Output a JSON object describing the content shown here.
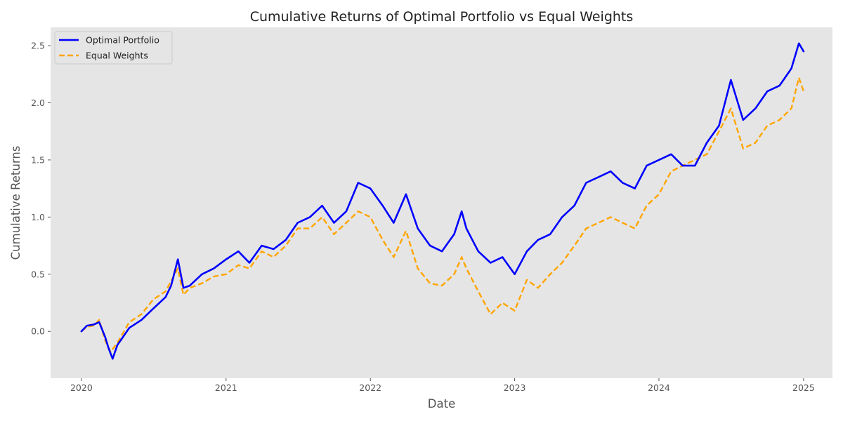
{
  "chart_data": {
    "type": "line",
    "title": "Cumulative Returns of Optimal Portfolio vs Equal Weights",
    "xlabel": "Date",
    "ylabel": "Cumulative Returns",
    "x_ticks": [
      "2020",
      "2021",
      "2022",
      "2023",
      "2024",
      "2025"
    ],
    "y_ticks": [
      "0.0",
      "0.5",
      "1.0",
      "1.5",
      "2.0",
      "2.5"
    ],
    "xlim": [
      "2019-10-15",
      "2025-03-15"
    ],
    "ylim": [
      -0.41,
      2.66
    ],
    "grid": false,
    "legend_position": "top-left",
    "background": "#e5e5e5",
    "series": [
      {
        "name": "Optimal Portfolio",
        "color": "#0000ff",
        "style": "solid",
        "points": [
          [
            "2020-01-01",
            0.0
          ],
          [
            "2020-01-15",
            0.05
          ],
          [
            "2020-02-01",
            0.06
          ],
          [
            "2020-02-15",
            0.08
          ],
          [
            "2020-03-01",
            -0.05
          ],
          [
            "2020-03-10",
            -0.15
          ],
          [
            "2020-03-20",
            -0.24
          ],
          [
            "2020-04-01",
            -0.12
          ],
          [
            "2020-04-15",
            -0.05
          ],
          [
            "2020-05-01",
            0.03
          ],
          [
            "2020-06-01",
            0.1
          ],
          [
            "2020-07-01",
            0.2
          ],
          [
            "2020-08-01",
            0.3
          ],
          [
            "2020-08-15",
            0.4
          ],
          [
            "2020-09-01",
            0.63
          ],
          [
            "2020-09-15",
            0.38
          ],
          [
            "2020-10-01",
            0.4
          ],
          [
            "2020-11-01",
            0.5
          ],
          [
            "2020-12-01",
            0.55
          ],
          [
            "2021-01-01",
            0.63
          ],
          [
            "2021-02-01",
            0.7
          ],
          [
            "2021-03-01",
            0.6
          ],
          [
            "2021-04-01",
            0.75
          ],
          [
            "2021-05-01",
            0.72
          ],
          [
            "2021-06-01",
            0.8
          ],
          [
            "2021-07-01",
            0.95
          ],
          [
            "2021-08-01",
            1.0
          ],
          [
            "2021-09-01",
            1.1
          ],
          [
            "2021-10-01",
            0.95
          ],
          [
            "2021-11-01",
            1.05
          ],
          [
            "2021-12-01",
            1.3
          ],
          [
            "2022-01-01",
            1.25
          ],
          [
            "2022-02-01",
            1.1
          ],
          [
            "2022-03-01",
            0.95
          ],
          [
            "2022-04-01",
            1.2
          ],
          [
            "2022-05-01",
            0.9
          ],
          [
            "2022-06-01",
            0.75
          ],
          [
            "2022-07-01",
            0.7
          ],
          [
            "2022-08-01",
            0.85
          ],
          [
            "2022-08-20",
            1.05
          ],
          [
            "2022-09-01",
            0.9
          ],
          [
            "2022-10-01",
            0.7
          ],
          [
            "2022-11-01",
            0.6
          ],
          [
            "2022-12-01",
            0.65
          ],
          [
            "2023-01-01",
            0.5
          ],
          [
            "2023-02-01",
            0.7
          ],
          [
            "2023-03-01",
            0.8
          ],
          [
            "2023-04-01",
            0.85
          ],
          [
            "2023-05-01",
            1.0
          ],
          [
            "2023-06-01",
            1.1
          ],
          [
            "2023-07-01",
            1.3
          ],
          [
            "2023-08-01",
            1.35
          ],
          [
            "2023-09-01",
            1.4
          ],
          [
            "2023-10-01",
            1.3
          ],
          [
            "2023-11-01",
            1.25
          ],
          [
            "2023-12-01",
            1.45
          ],
          [
            "2024-01-01",
            1.5
          ],
          [
            "2024-02-01",
            1.55
          ],
          [
            "2024-03-01",
            1.45
          ],
          [
            "2024-04-01",
            1.45
          ],
          [
            "2024-05-01",
            1.65
          ],
          [
            "2024-06-01",
            1.8
          ],
          [
            "2024-07-01",
            2.2
          ],
          [
            "2024-08-01",
            1.85
          ],
          [
            "2024-09-01",
            1.95
          ],
          [
            "2024-10-01",
            2.1
          ],
          [
            "2024-11-01",
            2.15
          ],
          [
            "2024-12-01",
            2.3
          ],
          [
            "2024-12-20",
            2.52
          ],
          [
            "2025-01-01",
            2.45
          ]
        ]
      },
      {
        "name": "Equal Weights",
        "color": "#ffa500",
        "style": "dashed",
        "points": [
          [
            "2020-01-01",
            0.0
          ],
          [
            "2020-01-15",
            0.04
          ],
          [
            "2020-02-01",
            0.05
          ],
          [
            "2020-02-15",
            0.1
          ],
          [
            "2020-03-01",
            -0.08
          ],
          [
            "2020-03-15",
            -0.18
          ],
          [
            "2020-04-01",
            -0.1
          ],
          [
            "2020-05-01",
            0.08
          ],
          [
            "2020-06-01",
            0.15
          ],
          [
            "2020-07-01",
            0.28
          ],
          [
            "2020-08-01",
            0.35
          ],
          [
            "2020-09-01",
            0.55
          ],
          [
            "2020-09-15",
            0.32
          ],
          [
            "2020-10-01",
            0.38
          ],
          [
            "2020-11-01",
            0.42
          ],
          [
            "2020-12-01",
            0.48
          ],
          [
            "2021-01-01",
            0.5
          ],
          [
            "2021-02-01",
            0.58
          ],
          [
            "2021-03-01",
            0.55
          ],
          [
            "2021-04-01",
            0.7
          ],
          [
            "2021-05-01",
            0.65
          ],
          [
            "2021-06-01",
            0.75
          ],
          [
            "2021-07-01",
            0.9
          ],
          [
            "2021-08-01",
            0.9
          ],
          [
            "2021-09-01",
            1.0
          ],
          [
            "2021-10-01",
            0.85
          ],
          [
            "2021-11-01",
            0.95
          ],
          [
            "2021-12-01",
            1.05
          ],
          [
            "2022-01-01",
            1.0
          ],
          [
            "2022-02-01",
            0.8
          ],
          [
            "2022-03-01",
            0.65
          ],
          [
            "2022-04-01",
            0.88
          ],
          [
            "2022-05-01",
            0.55
          ],
          [
            "2022-06-01",
            0.42
          ],
          [
            "2022-07-01",
            0.4
          ],
          [
            "2022-08-01",
            0.5
          ],
          [
            "2022-08-20",
            0.65
          ],
          [
            "2022-09-01",
            0.55
          ],
          [
            "2022-10-01",
            0.35
          ],
          [
            "2022-11-01",
            0.15
          ],
          [
            "2022-12-01",
            0.25
          ],
          [
            "2023-01-01",
            0.18
          ],
          [
            "2023-02-01",
            0.45
          ],
          [
            "2023-03-01",
            0.38
          ],
          [
            "2023-04-01",
            0.5
          ],
          [
            "2023-05-01",
            0.6
          ],
          [
            "2023-06-01",
            0.75
          ],
          [
            "2023-07-01",
            0.9
          ],
          [
            "2023-08-01",
            0.95
          ],
          [
            "2023-09-01",
            1.0
          ],
          [
            "2023-10-01",
            0.95
          ],
          [
            "2023-11-01",
            0.9
          ],
          [
            "2023-12-01",
            1.1
          ],
          [
            "2024-01-01",
            1.2
          ],
          [
            "2024-02-01",
            1.4
          ],
          [
            "2024-03-01",
            1.45
          ],
          [
            "2024-04-01",
            1.5
          ],
          [
            "2024-05-01",
            1.55
          ],
          [
            "2024-06-01",
            1.75
          ],
          [
            "2024-07-01",
            1.95
          ],
          [
            "2024-08-01",
            1.6
          ],
          [
            "2024-09-01",
            1.65
          ],
          [
            "2024-10-01",
            1.8
          ],
          [
            "2024-11-01",
            1.85
          ],
          [
            "2024-12-01",
            1.95
          ],
          [
            "2024-12-20",
            2.22
          ],
          [
            "2025-01-01",
            2.1
          ]
        ]
      }
    ]
  }
}
